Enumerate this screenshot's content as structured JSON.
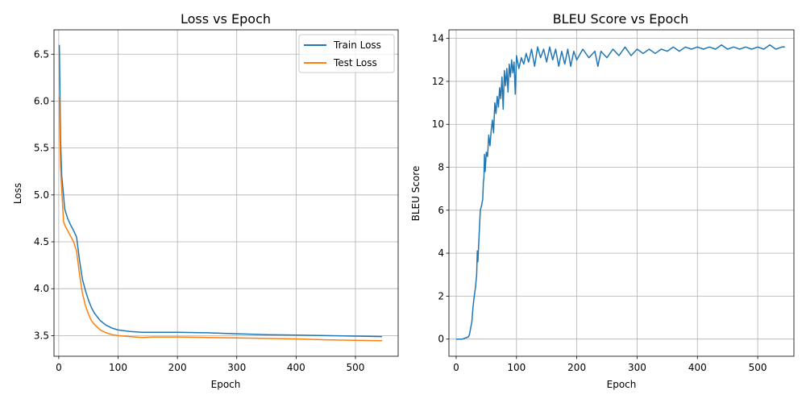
{
  "chart_data": [
    {
      "type": "line",
      "title": "Loss vs Epoch",
      "xlabel": "Epoch",
      "ylabel": "Loss",
      "xlim": [
        -8,
        572
      ],
      "ylim": [
        3.28,
        6.76
      ],
      "xticks": [
        0,
        100,
        200,
        300,
        400,
        500
      ],
      "yticks": [
        3.5,
        4.0,
        4.5,
        5.0,
        5.5,
        6.0,
        6.5
      ],
      "ytick_labels": [
        "3.5",
        "4.0",
        "4.5",
        "5.0",
        "5.5",
        "6.0",
        "6.5"
      ],
      "grid": true,
      "legend": "top-right",
      "series": [
        {
          "name": "Train Loss",
          "color": "#1f77b4",
          "points": [
            [
              1,
              6.6
            ],
            [
              2,
              6.1
            ],
            [
              3,
              5.6
            ],
            [
              5,
              5.2
            ],
            [
              8,
              5.0
            ],
            [
              10,
              4.85
            ],
            [
              15,
              4.75
            ],
            [
              20,
              4.68
            ],
            [
              25,
              4.62
            ],
            [
              30,
              4.55
            ],
            [
              35,
              4.3
            ],
            [
              40,
              4.1
            ],
            [
              45,
              3.98
            ],
            [
              50,
              3.88
            ],
            [
              55,
              3.8
            ],
            [
              60,
              3.74
            ],
            [
              70,
              3.66
            ],
            [
              80,
              3.61
            ],
            [
              90,
              3.58
            ],
            [
              100,
              3.56
            ],
            [
              120,
              3.545
            ],
            [
              140,
              3.535
            ],
            [
              160,
              3.535
            ],
            [
              200,
              3.535
            ],
            [
              250,
              3.53
            ],
            [
              300,
              3.52
            ],
            [
              350,
              3.51
            ],
            [
              400,
              3.505
            ],
            [
              450,
              3.5
            ],
            [
              500,
              3.495
            ],
            [
              545,
              3.49
            ]
          ]
        },
        {
          "name": "Test Loss",
          "color": "#ff7f0e",
          "points": [
            [
              1,
              6.05
            ],
            [
              2,
              5.6
            ],
            [
              3,
              5.3
            ],
            [
              5,
              5.05
            ],
            [
              8,
              4.72
            ],
            [
              10,
              4.68
            ],
            [
              15,
              4.62
            ],
            [
              20,
              4.56
            ],
            [
              25,
              4.5
            ],
            [
              30,
              4.4
            ],
            [
              35,
              4.15
            ],
            [
              40,
              3.95
            ],
            [
              45,
              3.82
            ],
            [
              50,
              3.73
            ],
            [
              55,
              3.66
            ],
            [
              60,
              3.62
            ],
            [
              70,
              3.56
            ],
            [
              80,
              3.53
            ],
            [
              90,
              3.51
            ],
            [
              100,
              3.5
            ],
            [
              120,
              3.49
            ],
            [
              140,
              3.48
            ],
            [
              160,
              3.485
            ],
            [
              200,
              3.485
            ],
            [
              250,
              3.48
            ],
            [
              300,
              3.475
            ],
            [
              350,
              3.47
            ],
            [
              400,
              3.465
            ],
            [
              450,
              3.455
            ],
            [
              500,
              3.45
            ],
            [
              545,
              3.445
            ]
          ]
        }
      ]
    },
    {
      "type": "line",
      "title": "BLEU Score vs Epoch",
      "xlabel": "Epoch",
      "ylabel": "BLEU Score",
      "xlim": [
        -12,
        560
      ],
      "ylim": [
        -0.8,
        14.4
      ],
      "xticks": [
        0,
        100,
        200,
        300,
        400,
        500
      ],
      "yticks": [
        0,
        2,
        4,
        6,
        8,
        10,
        12,
        14
      ],
      "grid": true,
      "series": [
        {
          "name": "BLEU",
          "color": "#1f77b4",
          "points": [
            [
              0,
              0
            ],
            [
              10,
              0
            ],
            [
              15,
              0.05
            ],
            [
              20,
              0.1
            ],
            [
              22,
              0.2
            ],
            [
              24,
              0.5
            ],
            [
              26,
              0.8
            ],
            [
              28,
              1.5
            ],
            [
              30,
              2.0
            ],
            [
              32,
              2.4
            ],
            [
              34,
              3.0
            ],
            [
              35,
              4.1
            ],
            [
              36,
              3.6
            ],
            [
              38,
              4.8
            ],
            [
              40,
              6.0
            ],
            [
              42,
              6.2
            ],
            [
              44,
              6.5
            ],
            [
              45,
              7.3
            ],
            [
              46,
              7.5
            ],
            [
              47,
              8.6
            ],
            [
              48,
              7.8
            ],
            [
              50,
              8.7
            ],
            [
              52,
              8.5
            ],
            [
              54,
              9.5
            ],
            [
              56,
              9.0
            ],
            [
              58,
              9.7
            ],
            [
              60,
              10.2
            ],
            [
              62,
              9.6
            ],
            [
              64,
              11.0
            ],
            [
              66,
              10.5
            ],
            [
              68,
              11.3
            ],
            [
              70,
              10.8
            ],
            [
              72,
              11.7
            ],
            [
              74,
              11.2
            ],
            [
              76,
              12.2
            ],
            [
              78,
              10.7
            ],
            [
              80,
              12.5
            ],
            [
              82,
              11.8
            ],
            [
              84,
              12.6
            ],
            [
              86,
              11.5
            ],
            [
              88,
              12.8
            ],
            [
              90,
              12.2
            ],
            [
              92,
              13.0
            ],
            [
              94,
              12.4
            ],
            [
              96,
              12.9
            ],
            [
              98,
              11.4
            ],
            [
              100,
              13.2
            ],
            [
              104,
              12.6
            ],
            [
              108,
              13.1
            ],
            [
              112,
              12.8
            ],
            [
              116,
              13.3
            ],
            [
              120,
              12.9
            ],
            [
              125,
              13.5
            ],
            [
              130,
              12.7
            ],
            [
              135,
              13.6
            ],
            [
              140,
              13.1
            ],
            [
              145,
              13.5
            ],
            [
              150,
              12.9
            ],
            [
              155,
              13.6
            ],
            [
              160,
              13.0
            ],
            [
              165,
              13.5
            ],
            [
              170,
              12.7
            ],
            [
              175,
              13.4
            ],
            [
              180,
              12.8
            ],
            [
              185,
              13.5
            ],
            [
              190,
              12.7
            ],
            [
              195,
              13.4
            ],
            [
              200,
              13.0
            ],
            [
              210,
              13.5
            ],
            [
              220,
              13.1
            ],
            [
              230,
              13.4
            ],
            [
              235,
              12.7
            ],
            [
              240,
              13.4
            ],
            [
              250,
              13.1
            ],
            [
              260,
              13.5
            ],
            [
              270,
              13.2
            ],
            [
              280,
              13.6
            ],
            [
              290,
              13.2
            ],
            [
              300,
              13.5
            ],
            [
              310,
              13.3
            ],
            [
              320,
              13.5
            ],
            [
              330,
              13.3
            ],
            [
              340,
              13.5
            ],
            [
              350,
              13.4
            ],
            [
              360,
              13.6
            ],
            [
              370,
              13.4
            ],
            [
              380,
              13.6
            ],
            [
              390,
              13.5
            ],
            [
              400,
              13.6
            ],
            [
              410,
              13.5
            ],
            [
              420,
              13.6
            ],
            [
              430,
              13.5
            ],
            [
              440,
              13.7
            ],
            [
              450,
              13.5
            ],
            [
              460,
              13.6
            ],
            [
              470,
              13.5
            ],
            [
              480,
              13.6
            ],
            [
              490,
              13.5
            ],
            [
              500,
              13.6
            ],
            [
              510,
              13.5
            ],
            [
              520,
              13.7
            ],
            [
              530,
              13.5
            ],
            [
              540,
              13.6
            ],
            [
              545,
              13.6
            ]
          ]
        }
      ]
    }
  ]
}
